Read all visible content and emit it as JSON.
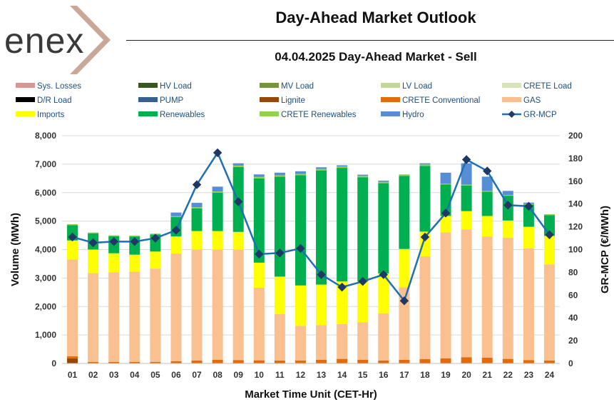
{
  "brand": {
    "logo_text": "enex"
  },
  "header": {
    "title": "Day-Ahead Market Outlook",
    "subtitle": "04.04.2025  Day-Ahead Market - Sell"
  },
  "chart_data": {
    "type": "bar",
    "stacked": true,
    "title": "Day-Ahead Market Outlook",
    "subtitle": "04.04.2025  Day-Ahead Market - Sell",
    "xlabel": "Market Time Unit (CET-Hr)",
    "ylabel": "Volume (MWh)",
    "y2label": "GR-MCP (€/MWh)",
    "ylim": [
      0,
      8000
    ],
    "y2lim": [
      0,
      200
    ],
    "yticks": [
      "0",
      "1,000",
      "2,000",
      "3,000",
      "4,000",
      "5,000",
      "6,000",
      "7,000",
      "8,000"
    ],
    "y2ticks": [
      "0",
      "20",
      "40",
      "60",
      "80",
      "100",
      "120",
      "140",
      "160",
      "180",
      "200"
    ],
    "grid": true,
    "legend_position": "top",
    "categories": [
      "01",
      "02",
      "03",
      "04",
      "05",
      "06",
      "07",
      "08",
      "09",
      "10",
      "11",
      "12",
      "13",
      "14",
      "15",
      "16",
      "17",
      "18",
      "19",
      "20",
      "21",
      "22",
      "23",
      "24"
    ],
    "legend": [
      {
        "name": "Sys. Losses",
        "color": "#d99594",
        "kind": "bar"
      },
      {
        "name": "HV Load",
        "color": "#375623",
        "kind": "bar"
      },
      {
        "name": "MV Load",
        "color": "#77933c",
        "kind": "bar"
      },
      {
        "name": "LV Load",
        "color": "#c4d79b",
        "kind": "bar"
      },
      {
        "name": "CRETE Load",
        "color": "#d8e4bc",
        "kind": "bar"
      },
      {
        "name": "D/R Load",
        "color": "#000000",
        "kind": "bar"
      },
      {
        "name": "PUMP",
        "color": "#366092",
        "kind": "bar"
      },
      {
        "name": "Lignite",
        "color": "#974706",
        "kind": "bar"
      },
      {
        "name": "CRETE Conventional",
        "color": "#e36c09",
        "kind": "bar"
      },
      {
        "name": "GAS",
        "color": "#fac090",
        "kind": "bar"
      },
      {
        "name": "Imports",
        "color": "#ffff00",
        "kind": "bar"
      },
      {
        "name": "Renewables",
        "color": "#00b050",
        "kind": "bar"
      },
      {
        "name": "CRETE Renewables",
        "color": "#92d050",
        "kind": "bar"
      },
      {
        "name": "Hydro",
        "color": "#558ed5",
        "kind": "bar"
      },
      {
        "name": "GR-MCP",
        "color": "#1f6fb4",
        "kind": "line"
      }
    ],
    "series": [
      {
        "name": "Lignite",
        "color": "#974706",
        "values": [
          180,
          0,
          0,
          0,
          0,
          0,
          0,
          0,
          0,
          0,
          0,
          0,
          0,
          0,
          0,
          0,
          0,
          0,
          0,
          0,
          0,
          0,
          0,
          0
        ]
      },
      {
        "name": "CRETE Conventional",
        "color": "#e36c09",
        "values": [
          70,
          50,
          50,
          50,
          50,
          80,
          100,
          130,
          120,
          110,
          100,
          100,
          130,
          160,
          130,
          100,
          130,
          150,
          180,
          220,
          200,
          160,
          120,
          100
        ]
      },
      {
        "name": "GAS",
        "color": "#fac090",
        "values": [
          3400,
          3120,
          3150,
          3170,
          3280,
          3780,
          3900,
          3870,
          3880,
          2550,
          1630,
          1220,
          1220,
          1220,
          1320,
          1660,
          2540,
          3610,
          4420,
          4490,
          4260,
          4260,
          3920,
          3380
        ]
      },
      {
        "name": "Imports",
        "color": "#ffff00",
        "values": [
          670,
          830,
          670,
          600,
          600,
          600,
          650,
          650,
          620,
          880,
          1320,
          1420,
          1420,
          1500,
          1430,
          1400,
          1350,
          870,
          580,
          640,
          720,
          600,
          760,
          1000
        ]
      },
      {
        "name": "Renewables",
        "color": "#00b050",
        "values": [
          540,
          570,
          600,
          640,
          600,
          680,
          800,
          1350,
          2280,
          2960,
          3510,
          3870,
          4010,
          3990,
          3660,
          3170,
          2570,
          2310,
          1110,
          900,
          850,
          870,
          780,
          730
        ]
      },
      {
        "name": "CRETE Renewables",
        "color": "#92d050",
        "values": [
          30,
          30,
          30,
          30,
          30,
          30,
          40,
          40,
          50,
          50,
          50,
          50,
          50,
          50,
          50,
          50,
          50,
          50,
          30,
          30,
          30,
          30,
          30,
          30
        ]
      },
      {
        "name": "Hydro",
        "color": "#558ed5",
        "values": [
          0,
          0,
          0,
          0,
          0,
          130,
          150,
          170,
          80,
          90,
          90,
          90,
          60,
          40,
          40,
          40,
          0,
          40,
          380,
          750,
          500,
          140,
          40,
          0
        ]
      }
    ],
    "line": {
      "name": "GR-MCP",
      "color": "#1f6fb4",
      "axis": "right",
      "values": [
        111,
        106,
        107,
        107,
        110,
        117,
        157,
        185,
        142,
        96,
        97,
        101,
        78,
        67,
        72,
        78,
        55,
        111,
        132,
        179,
        169,
        139,
        138,
        113
      ]
    }
  }
}
